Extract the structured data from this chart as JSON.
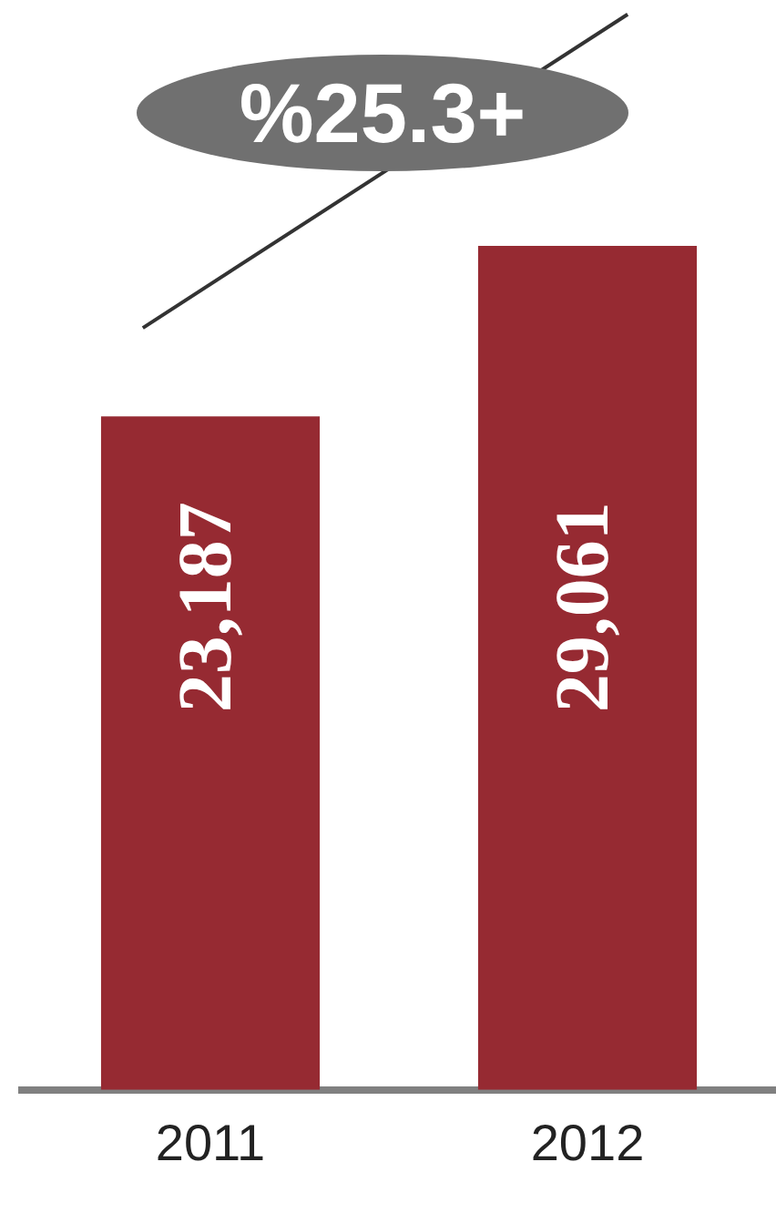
{
  "chart_data": {
    "type": "bar",
    "categories": [
      "2011",
      "2012"
    ],
    "values": [
      23187,
      29061
    ],
    "color": "#962a32",
    "value_labels": [
      "23,187",
      "29,061"
    ],
    "annotations": [
      "%25.3+"
    ],
    "grid": false,
    "legend": false,
    "tick_labels": "x"
  }
}
